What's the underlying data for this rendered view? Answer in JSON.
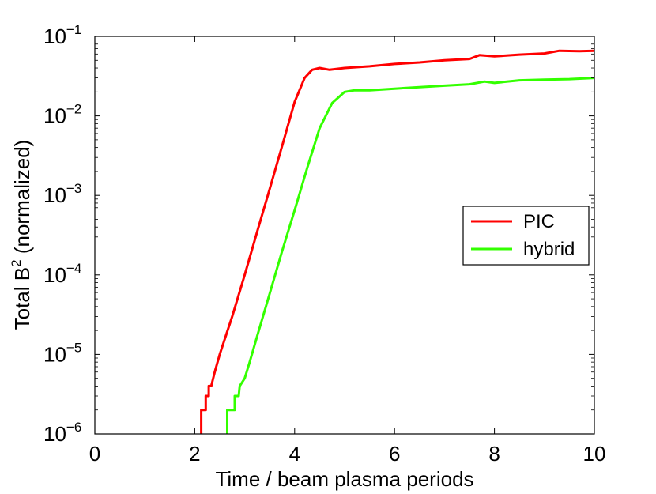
{
  "chart_data": {
    "type": "line",
    "title": "",
    "xlabel": "Time / beam plasma periods",
    "ylabel_prefix": "Total B",
    "ylabel_sup": "2",
    "ylabel_suffix": " (normalized)",
    "xlim": [
      0,
      10
    ],
    "ylim": [
      1e-06,
      0.1
    ],
    "yscale": "log",
    "grid": false,
    "x_ticks": [
      0,
      2,
      4,
      6,
      8,
      10
    ],
    "x_tick_labels": [
      "0",
      "2",
      "4",
      "6",
      "8",
      "10"
    ],
    "y_tick_exponents": [
      -6,
      -5,
      -4,
      -3,
      -2,
      -1
    ],
    "y_tick_base": "10",
    "y_tick_sups": [
      "−6",
      "−5",
      "−4",
      "−3",
      "−2",
      "−1"
    ],
    "legend_location": "right-middle",
    "series": [
      {
        "name": "PIC",
        "color": "#ff0000",
        "points": [
          [
            2.13,
            1e-06
          ],
          [
            2.13,
            2e-06
          ],
          [
            2.22,
            2e-06
          ],
          [
            2.22,
            3e-06
          ],
          [
            2.28,
            3e-06
          ],
          [
            2.28,
            4e-06
          ],
          [
            2.33,
            4e-06
          ],
          [
            2.4,
            6e-06
          ],
          [
            2.5,
            1e-05
          ],
          [
            2.75,
            3e-05
          ],
          [
            3.0,
            0.0001
          ],
          [
            3.25,
            0.00035
          ],
          [
            3.5,
            0.0012
          ],
          [
            3.75,
            0.0042
          ],
          [
            4.0,
            0.015
          ],
          [
            4.2,
            0.03
          ],
          [
            4.35,
            0.038
          ],
          [
            4.5,
            0.04
          ],
          [
            4.7,
            0.038
          ],
          [
            5.0,
            0.04
          ],
          [
            5.5,
            0.042
          ],
          [
            6.0,
            0.045
          ],
          [
            6.5,
            0.047
          ],
          [
            7.0,
            0.05
          ],
          [
            7.5,
            0.052
          ],
          [
            7.7,
            0.058
          ],
          [
            8.0,
            0.056
          ],
          [
            8.5,
            0.059
          ],
          [
            9.0,
            0.061
          ],
          [
            9.3,
            0.066
          ],
          [
            9.7,
            0.065
          ],
          [
            10.0,
            0.066
          ]
        ]
      },
      {
        "name": "hybrid",
        "color": "#33ff00",
        "points": [
          [
            2.65,
            1e-06
          ],
          [
            2.65,
            2e-06
          ],
          [
            2.8,
            2e-06
          ],
          [
            2.8,
            3e-06
          ],
          [
            2.88,
            3e-06
          ],
          [
            2.9,
            4e-06
          ],
          [
            3.0,
            5e-06
          ],
          [
            3.1,
            8e-06
          ],
          [
            3.25,
            1.7e-05
          ],
          [
            3.5,
            5.8e-05
          ],
          [
            3.75,
            0.0002
          ],
          [
            4.0,
            0.00065
          ],
          [
            4.25,
            0.0022
          ],
          [
            4.5,
            0.007
          ],
          [
            4.75,
            0.0145
          ],
          [
            5.0,
            0.02
          ],
          [
            5.2,
            0.021
          ],
          [
            5.5,
            0.021
          ],
          [
            6.0,
            0.022
          ],
          [
            6.5,
            0.023
          ],
          [
            7.0,
            0.024
          ],
          [
            7.5,
            0.025
          ],
          [
            7.8,
            0.027
          ],
          [
            8.0,
            0.026
          ],
          [
            8.5,
            0.028
          ],
          [
            9.0,
            0.0285
          ],
          [
            9.5,
            0.029
          ],
          [
            10.0,
            0.03
          ]
        ]
      }
    ]
  }
}
